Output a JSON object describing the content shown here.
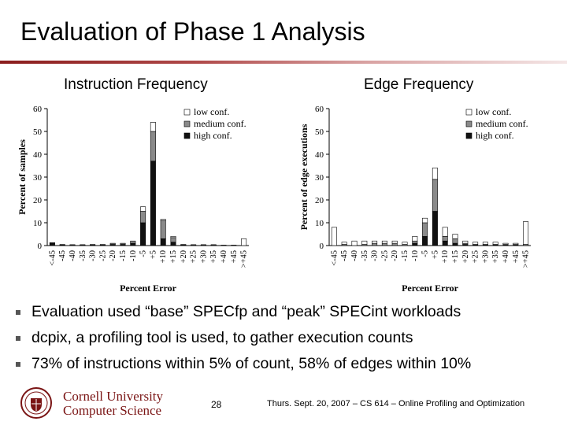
{
  "slide": {
    "title": "Evaluation of Phase 1 Analysis",
    "subtitle_left": "Instruction Frequency",
    "subtitle_right": "Edge Frequency",
    "bullets": [
      "Evaluation used “base” SPECfp  and “peak” SPECint workloads",
      "dcpix, a profiling tool is used, to gather execution counts",
      "73% of instructions within 5% of count, 58% of edges within 10%"
    ],
    "page_number": "28",
    "footer": "Thurs. Sept. 20, 2007 – CS 614 – Online Profiling and Optimization",
    "logo": {
      "university": "Cornell University",
      "department": "Computer Science"
    }
  },
  "colors": {
    "accent": "#8a1c1c",
    "logo": "#7a1414",
    "high": "#111111",
    "medium": "#8a8a8a",
    "low": "#ffffff"
  },
  "chart_data": [
    {
      "type": "bar",
      "stacked": true,
      "title": "",
      "xlabel": "Percent Error",
      "ylabel": "Percent of samples",
      "ylim": [
        0,
        60
      ],
      "yticks": [
        0,
        10,
        20,
        30,
        40,
        50,
        60
      ],
      "categories": [
        "<-45",
        "-45",
        "-40",
        "-35",
        "-30",
        "-25",
        "-20",
        "-15",
        "-10",
        "-5",
        "+5",
        "+10",
        "+15",
        "+20",
        "+25",
        "+30",
        "+35",
        "+40",
        "+45",
        ">+45"
      ],
      "series": [
        {
          "name": "low conf.",
          "values": [
            0,
            0,
            0,
            0,
            0,
            0,
            0,
            0,
            0,
            2,
            4,
            0.5,
            0.5,
            0,
            0,
            0,
            0,
            0,
            0,
            3
          ]
        },
        {
          "name": "medium conf.",
          "values": [
            0.3,
            0.2,
            0.2,
            0.2,
            0.3,
            0.3,
            0.5,
            0.5,
            1,
            5,
            13,
            8,
            2,
            0.2,
            0.2,
            0.2,
            0.2,
            0,
            0,
            0
          ]
        },
        {
          "name": "high conf.",
          "values": [
            1,
            0.3,
            0.2,
            0.2,
            0.2,
            0.2,
            0.5,
            0.5,
            1,
            10,
            37,
            3,
            1.5,
            0.3,
            0.2,
            0.2,
            0.2,
            0.2,
            0.2,
            0
          ]
        }
      ],
      "legend": "top-right"
    },
    {
      "type": "bar",
      "stacked": true,
      "title": "",
      "xlabel": "Percent Error",
      "ylabel": "Percent of edge executions",
      "ylim": [
        0,
        60
      ],
      "yticks": [
        0,
        10,
        20,
        30,
        40,
        50,
        60
      ],
      "categories": [
        "<-45",
        "-45",
        "-40",
        "-35",
        "-30",
        "-25",
        "-20",
        "-15",
        "-10",
        "-5",
        "+5",
        "+10",
        "+15",
        "+20",
        "+25",
        "+30",
        "+35",
        "+40",
        "+45",
        ">+45"
      ],
      "series": [
        {
          "name": "low conf.",
          "values": [
            8,
            1,
            2,
            1.5,
            1,
            1,
            1,
            1,
            2,
            2,
            5,
            4,
            2,
            1,
            1,
            1,
            1,
            0.5,
            0.5,
            10
          ]
        },
        {
          "name": "medium conf.",
          "values": [
            0,
            0.5,
            0,
            0.5,
            1,
            1,
            1,
            0.5,
            1,
            6,
            14,
            2,
            2,
            0.5,
            0,
            0,
            0,
            0,
            0,
            0.5
          ]
        },
        {
          "name": "high conf.",
          "values": [
            0,
            0,
            0,
            0,
            0,
            0,
            0,
            0,
            1,
            4,
            15,
            2,
            1,
            0.5,
            0.5,
            0.5,
            0.5,
            0.5,
            0.5,
            0
          ]
        }
      ],
      "legend": "top-right"
    }
  ]
}
